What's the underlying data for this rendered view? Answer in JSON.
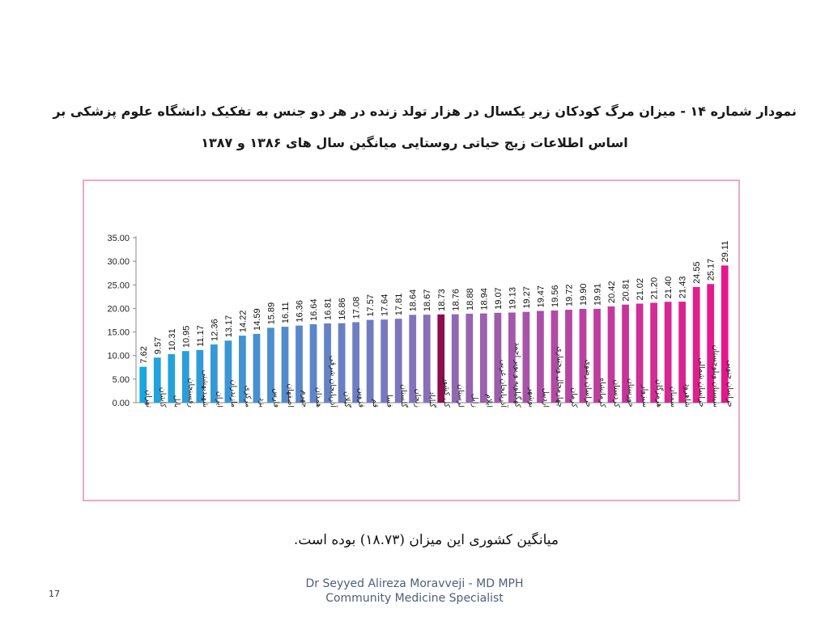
{
  "title": {
    "line1": "نمودار شماره ۱۴ - میزان مرگ کودکان زیر یکسال در هزار تولد زنده در هر دو جنس به تفکیک دانشگاه علوم پزشکی بر",
    "line2": "اساس اطلاعات زیج حیاتی روستایی میانگین سال های ۱۳۸۶ و ۱۳۸۷"
  },
  "note": "میانگین کشوری این میزان (۱۸.۷۳) بوده است.",
  "footer": {
    "line1": "Dr Seyyed Alireza Moravveji - MD MPH",
    "line2": "Community Medicine Specialist"
  },
  "page_number": "17",
  "colors": {
    "gradient_start": "#1aa6e0",
    "gradient_mid": "#8b6fb8",
    "gradient_end": "#e8168c",
    "highlight": "#8e0e4c",
    "frame": "#f0a6c8"
  },
  "chart_data": {
    "type": "bar",
    "ylim": [
      0,
      35
    ],
    "yticks": [
      "0.00",
      "5.00",
      "10.00",
      "15.00",
      "20.00",
      "25.00",
      "30.00",
      "35.00"
    ],
    "grid": false,
    "highlight_category": "کل کشور",
    "categories": [
      "تهران",
      "کاشان",
      "بابل",
      "رفسنجان",
      "شهیدبهشتی",
      "ایران",
      "مازندران",
      "مرکزی",
      "یزد",
      "فارس",
      "اصفهان",
      "جهرم",
      "همدان",
      "آذربایجان شرقی",
      "گیلان",
      "قزوین",
      "قم",
      "فسا",
      "گلستان",
      "زنجان",
      "گناباد",
      "کل کشور",
      "لرستان",
      "زابل",
      "ایلام",
      "آذربایجان غربی",
      "کهگیلویه و بویر احمد",
      "بوشهر",
      "اردبیل",
      "چهارمحال وبختیاری",
      "کرمان",
      "خراسان رضوی",
      "کرمانشاه",
      "کردستان",
      "خوزستان",
      "سبزوار",
      "هرمزگان",
      "سمنان",
      "شاهرود",
      "خراسان شمالی",
      "سیستان وبلوچستان",
      "خراسان جنوبی"
    ],
    "values": [
      7.62,
      9.57,
      10.31,
      10.95,
      11.17,
      12.36,
      13.17,
      14.22,
      14.59,
      15.89,
      16.11,
      16.36,
      16.64,
      16.81,
      16.86,
      17.08,
      17.57,
      17.64,
      17.81,
      18.64,
      18.67,
      18.73,
      18.76,
      18.88,
      18.94,
      19.07,
      19.13,
      19.27,
      19.47,
      19.56,
      19.72,
      19.9,
      19.91,
      20.42,
      20.81,
      21.02,
      21.2,
      21.4,
      21.43,
      24.55,
      25.17,
      29.11
    ],
    "labels": [
      "7.62",
      "9.57",
      "10.31",
      "10.95",
      "11.17",
      "12.36",
      "13.17",
      "14.22",
      "14.59",
      "15.89",
      "16.11",
      "16.36",
      "16.64",
      "16.81",
      "16.86",
      "17.08",
      "17.57",
      "17.64",
      "17.81",
      "18.64",
      "18.67",
      "18.73",
      "18.76",
      "18.88",
      "18.94",
      "19.07",
      "19.13",
      "19.27",
      "19.47",
      "19.56",
      "19.72",
      "19.90",
      "19.91",
      "20.42",
      "20.81",
      "21.02",
      "21.20",
      "21.40",
      "21.43",
      "24.55",
      "25.17",
      "29.11"
    ]
  }
}
